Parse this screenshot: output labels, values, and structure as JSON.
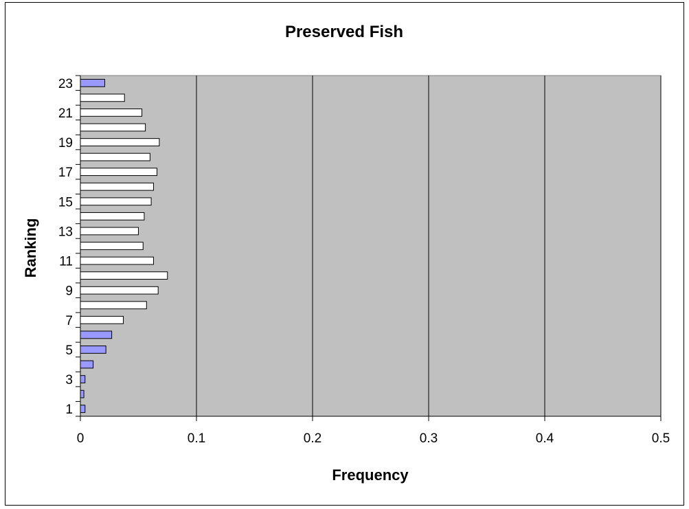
{
  "chart_data": {
    "type": "bar",
    "orientation": "horizontal",
    "title": "Preserved Fish",
    "xlabel": "Frequency",
    "ylabel": "Ranking",
    "xlim": [
      0,
      0.5
    ],
    "x_ticks": [
      "0",
      "0.1",
      "0.2",
      "0.3",
      "0.4",
      "0.5"
    ],
    "y_tick_labels": [
      "1",
      "3",
      "5",
      "7",
      "9",
      "11",
      "13",
      "15",
      "17",
      "19",
      "21",
      "23"
    ],
    "categories": [
      1,
      2,
      3,
      4,
      5,
      6,
      7,
      8,
      9,
      10,
      11,
      12,
      13,
      14,
      15,
      16,
      17,
      18,
      19,
      20,
      21,
      22,
      23
    ],
    "values": [
      0.004,
      0.003,
      0.004,
      0.011,
      0.022,
      0.027,
      0.037,
      0.057,
      0.067,
      0.075,
      0.063,
      0.054,
      0.05,
      0.055,
      0.061,
      0.063,
      0.066,
      0.06,
      0.068,
      0.056,
      0.053,
      0.038,
      0.021
    ],
    "highlighted_categories": [
      1,
      2,
      3,
      4,
      5,
      6,
      23
    ],
    "grid": "vertical",
    "legend": "none",
    "colors": {
      "plot_background": "#c0c0c0",
      "bar_default": "#ffffff",
      "bar_highlight": "#9999ff",
      "bar_outline": "#000000",
      "grid": "#000000"
    }
  }
}
